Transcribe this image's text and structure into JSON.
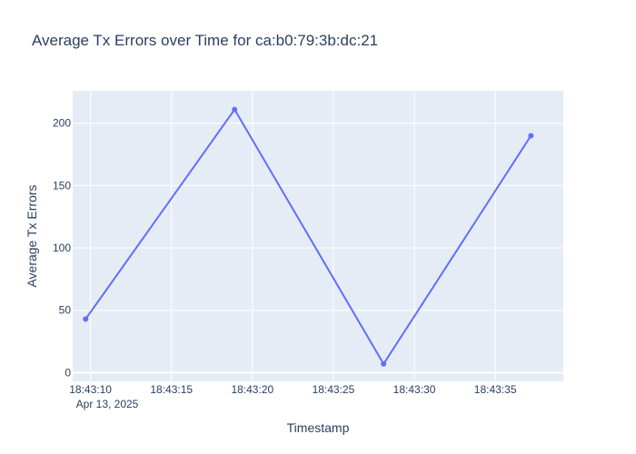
{
  "chart_data": {
    "type": "line",
    "title": "Average Tx Errors over Time for ca:b0:79:3b:dc:21",
    "xlabel": "Timestamp",
    "ylabel": "Average Tx Errors",
    "x_tick_labels": [
      "18:43:10",
      "18:43:15",
      "18:43:20",
      "18:43:25",
      "18:43:30",
      "18:43:35"
    ],
    "x_tick_values": [
      "2025-04-13 18:43:10",
      "2025-04-13 18:43:15",
      "2025-04-13 18:43:20",
      "2025-04-13 18:43:25",
      "2025-04-13 18:43:30",
      "2025-04-13 18:43:35"
    ],
    "x_date_label": "Apr 13, 2025",
    "y_ticks": [
      0,
      50,
      100,
      150,
      200
    ],
    "x": [
      "2025-04-13 18:43:09.7",
      "2025-04-13 18:43:18.9",
      "2025-04-13 18:43:28.1",
      "2025-04-13 18:43:37.2"
    ],
    "series": [
      {
        "values": [
          43,
          211,
          7,
          190
        ]
      }
    ],
    "xlim": [
      "2025-04-13 18:43:08.9",
      "2025-04-13 18:43:39.2"
    ],
    "ylim": [
      -7,
      226
    ],
    "grid": true,
    "colors": {
      "line": "#636efa",
      "plot_bg": "#e5ecf6",
      "grid": "#ffffff",
      "text": "#2a3f5f"
    }
  }
}
